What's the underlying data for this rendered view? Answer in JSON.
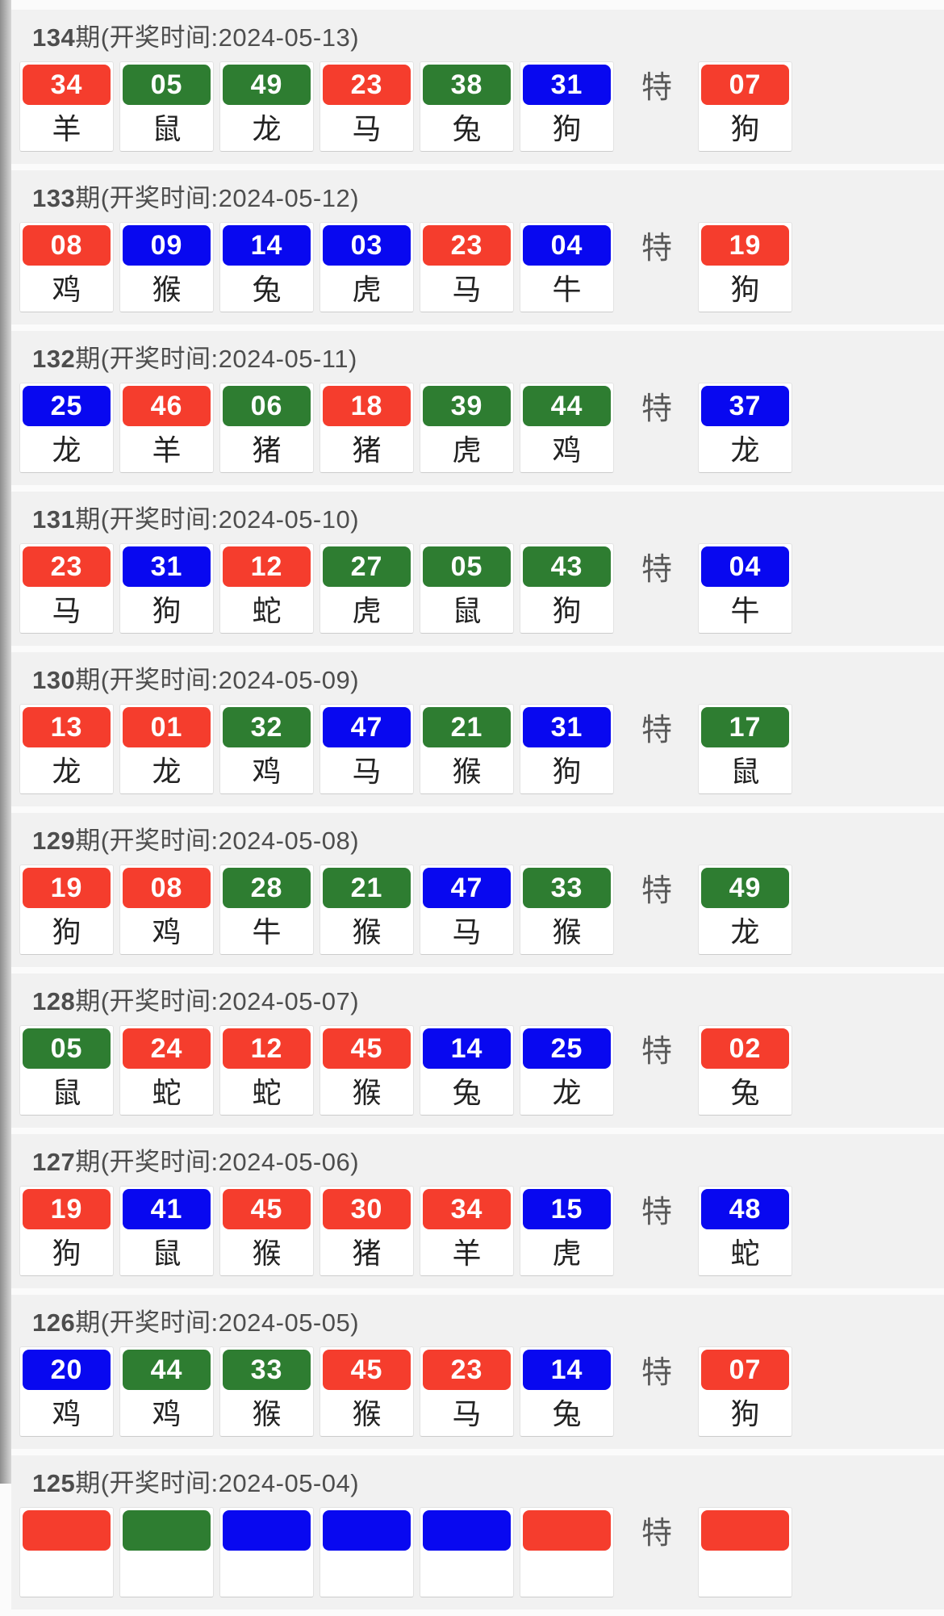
{
  "page": {
    "special_label": "特",
    "colors": {
      "red": "#f53d2d",
      "green": "#2e7d31",
      "blue": "#0808f0"
    }
  },
  "draws": [
    {
      "period": "134",
      "suffix": "期(开奖时间:2024-05-13)",
      "balls": [
        {
          "num": "34",
          "color": "red",
          "zodiac": "羊"
        },
        {
          "num": "05",
          "color": "green",
          "zodiac": "鼠"
        },
        {
          "num": "49",
          "color": "green",
          "zodiac": "龙"
        },
        {
          "num": "23",
          "color": "red",
          "zodiac": "马"
        },
        {
          "num": "38",
          "color": "green",
          "zodiac": "兔"
        },
        {
          "num": "31",
          "color": "blue",
          "zodiac": "狗"
        }
      ],
      "special": {
        "num": "07",
        "color": "red",
        "zodiac": "狗"
      }
    },
    {
      "period": "133",
      "suffix": "期(开奖时间:2024-05-12)",
      "balls": [
        {
          "num": "08",
          "color": "red",
          "zodiac": "鸡"
        },
        {
          "num": "09",
          "color": "blue",
          "zodiac": "猴"
        },
        {
          "num": "14",
          "color": "blue",
          "zodiac": "兔"
        },
        {
          "num": "03",
          "color": "blue",
          "zodiac": "虎"
        },
        {
          "num": "23",
          "color": "red",
          "zodiac": "马"
        },
        {
          "num": "04",
          "color": "blue",
          "zodiac": "牛"
        }
      ],
      "special": {
        "num": "19",
        "color": "red",
        "zodiac": "狗"
      }
    },
    {
      "period": "132",
      "suffix": "期(开奖时间:2024-05-11)",
      "balls": [
        {
          "num": "25",
          "color": "blue",
          "zodiac": "龙"
        },
        {
          "num": "46",
          "color": "red",
          "zodiac": "羊"
        },
        {
          "num": "06",
          "color": "green",
          "zodiac": "猪"
        },
        {
          "num": "18",
          "color": "red",
          "zodiac": "猪"
        },
        {
          "num": "39",
          "color": "green",
          "zodiac": "虎"
        },
        {
          "num": "44",
          "color": "green",
          "zodiac": "鸡"
        }
      ],
      "special": {
        "num": "37",
        "color": "blue",
        "zodiac": "龙"
      }
    },
    {
      "period": "131",
      "suffix": "期(开奖时间:2024-05-10)",
      "balls": [
        {
          "num": "23",
          "color": "red",
          "zodiac": "马"
        },
        {
          "num": "31",
          "color": "blue",
          "zodiac": "狗"
        },
        {
          "num": "12",
          "color": "red",
          "zodiac": "蛇"
        },
        {
          "num": "27",
          "color": "green",
          "zodiac": "虎"
        },
        {
          "num": "05",
          "color": "green",
          "zodiac": "鼠"
        },
        {
          "num": "43",
          "color": "green",
          "zodiac": "狗"
        }
      ],
      "special": {
        "num": "04",
        "color": "blue",
        "zodiac": "牛"
      }
    },
    {
      "period": "130",
      "suffix": "期(开奖时间:2024-05-09)",
      "balls": [
        {
          "num": "13",
          "color": "red",
          "zodiac": "龙"
        },
        {
          "num": "01",
          "color": "red",
          "zodiac": "龙"
        },
        {
          "num": "32",
          "color": "green",
          "zodiac": "鸡"
        },
        {
          "num": "47",
          "color": "blue",
          "zodiac": "马"
        },
        {
          "num": "21",
          "color": "green",
          "zodiac": "猴"
        },
        {
          "num": "31",
          "color": "blue",
          "zodiac": "狗"
        }
      ],
      "special": {
        "num": "17",
        "color": "green",
        "zodiac": "鼠"
      }
    },
    {
      "period": "129",
      "suffix": "期(开奖时间:2024-05-08)",
      "balls": [
        {
          "num": "19",
          "color": "red",
          "zodiac": "狗"
        },
        {
          "num": "08",
          "color": "red",
          "zodiac": "鸡"
        },
        {
          "num": "28",
          "color": "green",
          "zodiac": "牛"
        },
        {
          "num": "21",
          "color": "green",
          "zodiac": "猴"
        },
        {
          "num": "47",
          "color": "blue",
          "zodiac": "马"
        },
        {
          "num": "33",
          "color": "green",
          "zodiac": "猴"
        }
      ],
      "special": {
        "num": "49",
        "color": "green",
        "zodiac": "龙"
      }
    },
    {
      "period": "128",
      "suffix": "期(开奖时间:2024-05-07)",
      "balls": [
        {
          "num": "05",
          "color": "green",
          "zodiac": "鼠"
        },
        {
          "num": "24",
          "color": "red",
          "zodiac": "蛇"
        },
        {
          "num": "12",
          "color": "red",
          "zodiac": "蛇"
        },
        {
          "num": "45",
          "color": "red",
          "zodiac": "猴"
        },
        {
          "num": "14",
          "color": "blue",
          "zodiac": "兔"
        },
        {
          "num": "25",
          "color": "blue",
          "zodiac": "龙"
        }
      ],
      "special": {
        "num": "02",
        "color": "red",
        "zodiac": "兔"
      }
    },
    {
      "period": "127",
      "suffix": "期(开奖时间:2024-05-06)",
      "balls": [
        {
          "num": "19",
          "color": "red",
          "zodiac": "狗"
        },
        {
          "num": "41",
          "color": "blue",
          "zodiac": "鼠"
        },
        {
          "num": "45",
          "color": "red",
          "zodiac": "猴"
        },
        {
          "num": "30",
          "color": "red",
          "zodiac": "猪"
        },
        {
          "num": "34",
          "color": "red",
          "zodiac": "羊"
        },
        {
          "num": "15",
          "color": "blue",
          "zodiac": "虎"
        }
      ],
      "special": {
        "num": "48",
        "color": "blue",
        "zodiac": "蛇"
      }
    },
    {
      "period": "126",
      "suffix": "期(开奖时间:2024-05-05)",
      "balls": [
        {
          "num": "20",
          "color": "blue",
          "zodiac": "鸡"
        },
        {
          "num": "44",
          "color": "green",
          "zodiac": "鸡"
        },
        {
          "num": "33",
          "color": "green",
          "zodiac": "猴"
        },
        {
          "num": "45",
          "color": "red",
          "zodiac": "猴"
        },
        {
          "num": "23",
          "color": "red",
          "zodiac": "马"
        },
        {
          "num": "14",
          "color": "blue",
          "zodiac": "兔"
        }
      ],
      "special": {
        "num": "07",
        "color": "red",
        "zodiac": "狗"
      }
    },
    {
      "period": "125",
      "suffix": "期(开奖时间:2024-05-04)",
      "balls": [
        {
          "num": "",
          "color": "red",
          "zodiac": ""
        },
        {
          "num": "",
          "color": "green",
          "zodiac": ""
        },
        {
          "num": "",
          "color": "blue",
          "zodiac": ""
        },
        {
          "num": "",
          "color": "blue",
          "zodiac": ""
        },
        {
          "num": "",
          "color": "blue",
          "zodiac": ""
        },
        {
          "num": "",
          "color": "red",
          "zodiac": ""
        }
      ],
      "special": {
        "num": "",
        "color": "red",
        "zodiac": ""
      }
    }
  ]
}
